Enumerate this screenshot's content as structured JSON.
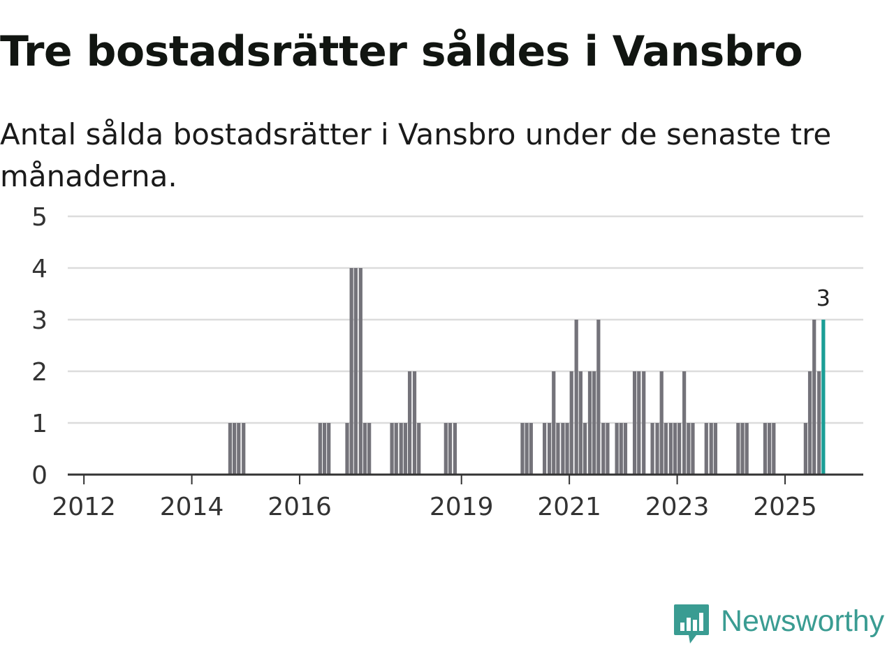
{
  "title": "Tre bostadsrätter såldes i Vansbro",
  "subtitle": "Antal sålda bostadsrätter i Vansbro under de senaste tre månaderna.",
  "brand": {
    "name": "Newsworthy",
    "color": "#3a9c92",
    "icon": "newsworthy-logo-icon"
  },
  "colors": {
    "bar": "#74737a",
    "highlight": "#1a9e96",
    "grid": "#dcdcdc",
    "axis": "#333333"
  },
  "chart_data": {
    "type": "bar",
    "title": "Tre bostadsrätter såldes i Vansbro",
    "xlabel": "",
    "ylabel": "",
    "ylim": [
      0,
      5
    ],
    "yticks": [
      "0",
      "1",
      "2",
      "3",
      "4",
      "5"
    ],
    "xtick_labels": [
      {
        "label": "2012",
        "year": 2012
      },
      {
        "label": "2014",
        "year": 2014
      },
      {
        "label": "2016",
        "year": 2016
      },
      {
        "label": "2019",
        "year": 2019
      },
      {
        "label": "2021",
        "year": 2021
      },
      {
        "label": "2023",
        "year": 2023
      },
      {
        "label": "2025",
        "year": 2025
      }
    ],
    "x_range": [
      2011.7,
      2026.45
    ],
    "bar_width_years": 0.0833,
    "series": [
      {
        "name": "Antal sålda bostadsrätter",
        "points": [
          {
            "t": 2014.71,
            "v": 1
          },
          {
            "t": 2014.79,
            "v": 1
          },
          {
            "t": 2014.87,
            "v": 1
          },
          {
            "t": 2014.96,
            "v": 1
          },
          {
            "t": 2016.38,
            "v": 1
          },
          {
            "t": 2016.46,
            "v": 1
          },
          {
            "t": 2016.54,
            "v": 1
          },
          {
            "t": 2016.88,
            "v": 1
          },
          {
            "t": 2016.96,
            "v": 4
          },
          {
            "t": 2017.04,
            "v": 4
          },
          {
            "t": 2017.13,
            "v": 4
          },
          {
            "t": 2017.21,
            "v": 1
          },
          {
            "t": 2017.29,
            "v": 1
          },
          {
            "t": 2017.71,
            "v": 1
          },
          {
            "t": 2017.79,
            "v": 1
          },
          {
            "t": 2017.88,
            "v": 1
          },
          {
            "t": 2017.96,
            "v": 1
          },
          {
            "t": 2018.04,
            "v": 2
          },
          {
            "t": 2018.13,
            "v": 2
          },
          {
            "t": 2018.21,
            "v": 1
          },
          {
            "t": 2018.71,
            "v": 1
          },
          {
            "t": 2018.79,
            "v": 1
          },
          {
            "t": 2018.88,
            "v": 1
          },
          {
            "t": 2020.13,
            "v": 1
          },
          {
            "t": 2020.21,
            "v": 1
          },
          {
            "t": 2020.29,
            "v": 1
          },
          {
            "t": 2020.54,
            "v": 1
          },
          {
            "t": 2020.63,
            "v": 1
          },
          {
            "t": 2020.71,
            "v": 2
          },
          {
            "t": 2020.79,
            "v": 1
          },
          {
            "t": 2020.88,
            "v": 1
          },
          {
            "t": 2020.96,
            "v": 1
          },
          {
            "t": 2021.04,
            "v": 2
          },
          {
            "t": 2021.13,
            "v": 3
          },
          {
            "t": 2021.21,
            "v": 2
          },
          {
            "t": 2021.29,
            "v": 1
          },
          {
            "t": 2021.38,
            "v": 2
          },
          {
            "t": 2021.46,
            "v": 2
          },
          {
            "t": 2021.54,
            "v": 3
          },
          {
            "t": 2021.63,
            "v": 1
          },
          {
            "t": 2021.71,
            "v": 1
          },
          {
            "t": 2021.88,
            "v": 1
          },
          {
            "t": 2021.96,
            "v": 1
          },
          {
            "t": 2022.04,
            "v": 1
          },
          {
            "t": 2022.21,
            "v": 2
          },
          {
            "t": 2022.29,
            "v": 2
          },
          {
            "t": 2022.38,
            "v": 2
          },
          {
            "t": 2022.54,
            "v": 1
          },
          {
            "t": 2022.63,
            "v": 1
          },
          {
            "t": 2022.71,
            "v": 2
          },
          {
            "t": 2022.79,
            "v": 1
          },
          {
            "t": 2022.88,
            "v": 1
          },
          {
            "t": 2022.96,
            "v": 1
          },
          {
            "t": 2023.04,
            "v": 1
          },
          {
            "t": 2023.13,
            "v": 2
          },
          {
            "t": 2023.21,
            "v": 1
          },
          {
            "t": 2023.29,
            "v": 1
          },
          {
            "t": 2023.54,
            "v": 1
          },
          {
            "t": 2023.63,
            "v": 1
          },
          {
            "t": 2023.71,
            "v": 1
          },
          {
            "t": 2024.13,
            "v": 1
          },
          {
            "t": 2024.21,
            "v": 1
          },
          {
            "t": 2024.29,
            "v": 1
          },
          {
            "t": 2024.63,
            "v": 1
          },
          {
            "t": 2024.71,
            "v": 1
          },
          {
            "t": 2024.79,
            "v": 1
          },
          {
            "t": 2025.38,
            "v": 1
          },
          {
            "t": 2025.46,
            "v": 2
          },
          {
            "t": 2025.54,
            "v": 3
          },
          {
            "t": 2025.63,
            "v": 2
          },
          {
            "t": 2025.71,
            "v": 3,
            "highlight": true
          }
        ]
      }
    ],
    "annotations": [
      {
        "t": 2025.71,
        "v": 3,
        "text": "3"
      }
    ]
  }
}
